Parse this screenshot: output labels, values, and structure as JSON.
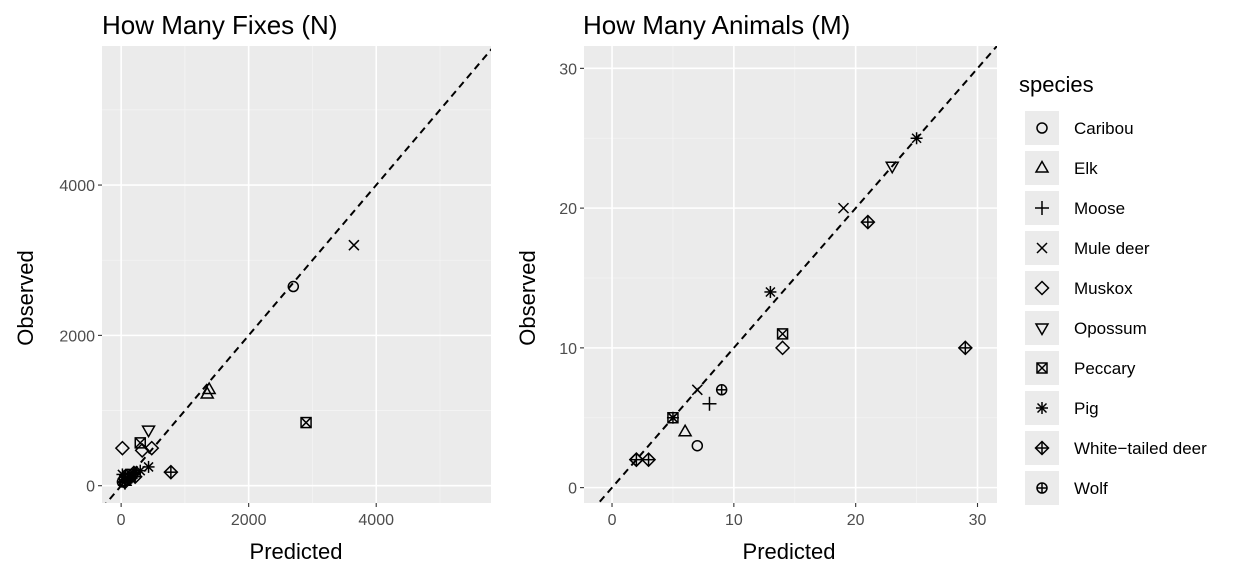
{
  "legend": {
    "title": "species",
    "items": [
      {
        "label": "Caribou",
        "shape": "circle"
      },
      {
        "label": "Elk",
        "shape": "triangle-up"
      },
      {
        "label": "Moose",
        "shape": "plus"
      },
      {
        "label": "Mule deer",
        "shape": "cross"
      },
      {
        "label": "Muskox",
        "shape": "diamond"
      },
      {
        "label": "Opossum",
        "shape": "triangle-down"
      },
      {
        "label": "Peccary",
        "shape": "square-cross"
      },
      {
        "label": "Pig",
        "shape": "asterisk"
      },
      {
        "label": "White−tailed deer",
        "shape": "diamond-plus"
      },
      {
        "label": "Wolf",
        "shape": "circle-plus"
      }
    ]
  },
  "colors": {
    "panel": "#ebebeb",
    "grid_major": "#ffffff",
    "grid_minor": "#f4f4f4",
    "points": "#000000",
    "reference_line": "#000000"
  },
  "chart_data": [
    {
      "type": "scatter",
      "title": "How Many Fixes (N)",
      "xlabel": "Predicted",
      "ylabel": "Observed",
      "xlim": [
        -300,
        5800
      ],
      "ylim": [
        -230,
        5850
      ],
      "xticks": [
        {
          "value": 0,
          "label": "0"
        },
        {
          "value": 2000,
          "label": "2000"
        },
        {
          "value": 4000,
          "label": "4000"
        }
      ],
      "yticks": [
        {
          "value": 0,
          "label": "0"
        },
        {
          "value": 2000,
          "label": "2000"
        },
        {
          "value": 4000,
          "label": "4000"
        }
      ],
      "grid": true,
      "reference_line": "y = x, dashed",
      "series": [
        {
          "species": "Caribou",
          "points": [
            [
              2700,
              2650
            ],
            [
              100,
              150
            ],
            [
              50,
              100
            ]
          ]
        },
        {
          "species": "Elk",
          "points": [
            [
              1380,
              1280
            ],
            [
              1350,
              1220
            ],
            [
              60,
              60
            ]
          ]
        },
        {
          "species": "Moose",
          "points": [
            [
              150,
              100
            ],
            [
              60,
              40
            ],
            [
              200,
              150
            ]
          ]
        },
        {
          "species": "Mule deer",
          "points": [
            [
              3650,
              3200
            ],
            [
              100,
              100
            ],
            [
              50,
              80
            ]
          ]
        },
        {
          "species": "Muskox",
          "points": [
            [
              20,
              500
            ],
            [
              330,
              470
            ],
            [
              480,
              500
            ]
          ]
        },
        {
          "species": "Opossum",
          "points": [
            [
              430,
              740
            ],
            [
              120,
              110
            ]
          ]
        },
        {
          "species": "Peccary",
          "points": [
            [
              2900,
              840
            ],
            [
              300,
              570
            ],
            [
              150,
              150
            ]
          ]
        },
        {
          "species": "Pig",
          "points": [
            [
              430,
              250
            ],
            [
              20,
              150
            ],
            [
              300,
              200
            ]
          ]
        },
        {
          "species": "White−tailed deer",
          "points": [
            [
              780,
              180
            ],
            [
              200,
              170
            ],
            [
              120,
              100
            ],
            [
              60,
              50
            ],
            [
              220,
              120
            ]
          ]
        },
        {
          "species": "Wolf",
          "points": [
            [
              100,
              80
            ],
            [
              20,
              50
            ],
            [
              180,
              150
            ]
          ]
        }
      ]
    },
    {
      "type": "scatter",
      "title": "How Many Animals (M)",
      "xlabel": "Predicted",
      "ylabel": "Observed",
      "xlim": [
        -2.3,
        31.6
      ],
      "ylim": [
        -1.1,
        31.6
      ],
      "xticks": [
        {
          "value": 0,
          "label": "0"
        },
        {
          "value": 10,
          "label": "10"
        },
        {
          "value": 20,
          "label": "20"
        },
        {
          "value": 30,
          "label": "30"
        }
      ],
      "yticks": [
        {
          "value": 0,
          "label": "0"
        },
        {
          "value": 10,
          "label": "10"
        },
        {
          "value": 20,
          "label": "20"
        },
        {
          "value": 30,
          "label": "30"
        }
      ],
      "grid": true,
      "reference_line": "y = x, dashed",
      "series": [
        {
          "species": "Caribou",
          "points": [
            [
              7,
              3
            ]
          ]
        },
        {
          "species": "Elk",
          "points": [
            [
              6,
              4
            ]
          ]
        },
        {
          "species": "Moose",
          "points": [
            [
              8,
              6
            ]
          ]
        },
        {
          "species": "Mule deer",
          "points": [
            [
              19,
              20
            ],
            [
              7,
              7
            ]
          ]
        },
        {
          "species": "Muskox",
          "points": [
            [
              14,
              10
            ],
            [
              2,
              2
            ]
          ]
        },
        {
          "species": "Opossum",
          "points": [
            [
              23,
              23
            ]
          ]
        },
        {
          "species": "Peccary",
          "points": [
            [
              14,
              11
            ],
            [
              5,
              5
            ]
          ]
        },
        {
          "species": "Pig",
          "points": [
            [
              25,
              25
            ],
            [
              13,
              14
            ],
            [
              5,
              5
            ]
          ]
        },
        {
          "species": "White−tailed deer",
          "points": [
            [
              29,
              10
            ],
            [
              21,
              19
            ],
            [
              3,
              2
            ],
            [
              2,
              2
            ]
          ]
        },
        {
          "species": "Wolf",
          "points": [
            [
              9,
              7
            ]
          ]
        }
      ]
    }
  ]
}
